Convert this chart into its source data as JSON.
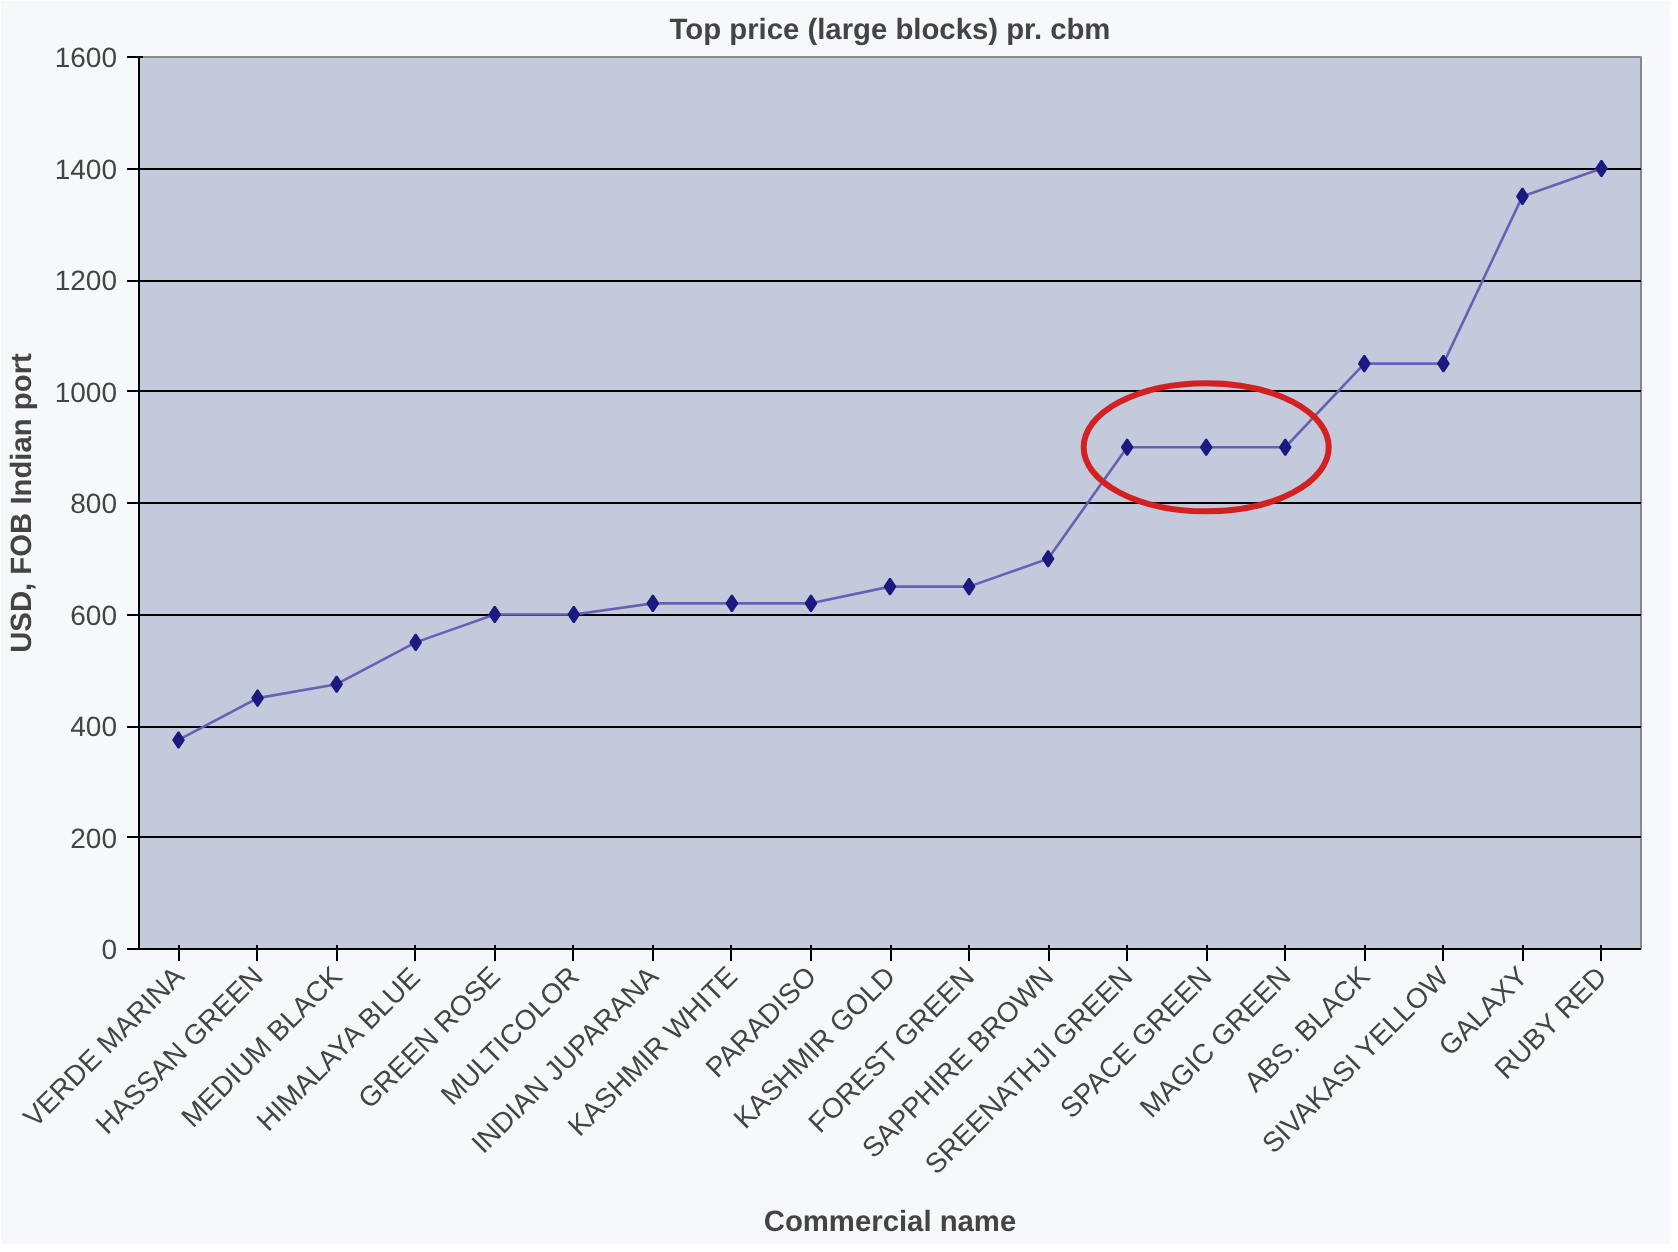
{
  "chart_data": {
    "type": "line",
    "title": "Top price (large blocks) pr. cbm",
    "xlabel": "Commercial name",
    "ylabel": "USD, FOB Indian port",
    "categories": [
      "VERDE MARINA",
      "HASSAN GREEN",
      "MEDIUM BLACK",
      "HIMALAYA BLUE",
      "GREEN ROSE",
      "MULTICOLOR",
      "INDIAN JUPARANA",
      "KASHMIR WHITE",
      "PARADISO",
      "KASHMIR GOLD",
      "FOREST GREEN",
      "SAPPHIRE BROWN",
      "SREENATHJI GREEN",
      "SPACE GREEN",
      "MAGIC GREEN",
      "ABS. BLACK",
      "SIVAKASI YELLOW",
      "GALAXY",
      "RUBY RED"
    ],
    "series": [
      {
        "color": "#6a5fb5",
        "values": [
          375,
          450,
          475,
          550,
          600,
          600,
          620,
          620,
          620,
          650,
          650,
          700,
          900,
          900,
          900,
          1050,
          1050,
          1350,
          1400
        ]
      }
    ],
    "ylim": [
      0,
      1600
    ],
    "yticks": [
      0,
      200,
      400,
      600,
      800,
      1000,
      1200,
      1400,
      1600
    ],
    "grid": "y",
    "marker": "diamond",
    "line_style": "solid"
  }
}
